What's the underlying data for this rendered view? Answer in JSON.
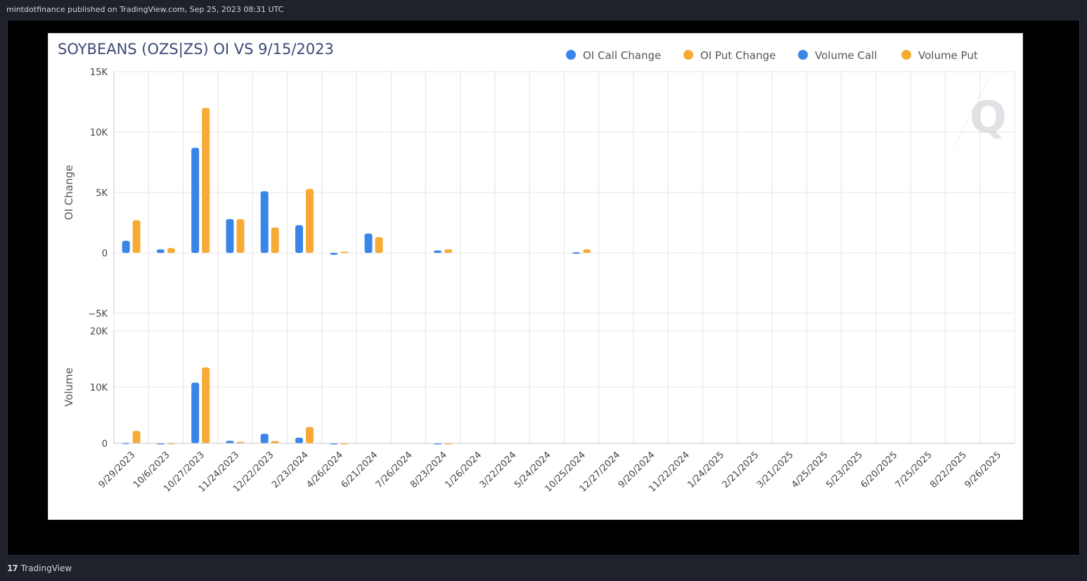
{
  "header": {
    "publish_line": "mintdotfinance published on TradingView.com, Sep 25, 2023 08:31 UTC"
  },
  "footer": {
    "brand_mark": "17",
    "brand": "TradingView"
  },
  "watermark": {
    "letter": "Q"
  },
  "colors": {
    "call": "#3a86e8",
    "put": "#f7ab36",
    "grid": "#e4e4e4",
    "axis": "#c8c8c8",
    "title": "#3b4a74"
  },
  "chart_data": {
    "type": "bar",
    "title": "SOYBEANS (OZS|ZS) OI VS 9/15/2023",
    "legend_position": "top-right",
    "grid": true,
    "categories": [
      "9/29/2023",
      "10/6/2023",
      "10/27/2023",
      "11/24/2023",
      "12/22/2023",
      "2/23/2024",
      "4/26/2024",
      "6/21/2024",
      "7/26/2024",
      "8/23/2024",
      "1/26/2024",
      "3/22/2024",
      "5/24/2024",
      "10/25/2024",
      "12/27/2024",
      "9/20/2024",
      "11/22/2024",
      "1/24/2025",
      "2/21/2025",
      "3/21/2025",
      "4/25/2025",
      "5/23/2025",
      "6/20/2025",
      "7/25/2025",
      "8/22/2025",
      "9/26/2025"
    ],
    "panels": [
      {
        "ylabel": "OI Change",
        "ylim": [
          -5000,
          15000
        ],
        "yticks": [
          15000,
          10000,
          5000,
          0,
          -5000
        ],
        "ytick_labels": [
          "15K",
          "10K",
          "5K",
          "0",
          "−5K"
        ],
        "series": [
          {
            "name": "OI Call Change",
            "color": "#3a86e8",
            "values": [
              1000,
              300,
              8700,
              2800,
              5100,
              2300,
              -150,
              1600,
              0,
              200,
              0,
              0,
              0,
              50,
              0,
              0,
              0,
              0,
              0,
              0,
              0,
              0,
              0,
              0,
              0,
              0
            ]
          },
          {
            "name": "OI Put Change",
            "color": "#f7ab36",
            "values": [
              2700,
              400,
              12000,
              2800,
              2100,
              5300,
              100,
              1300,
              0,
              300,
              0,
              0,
              0,
              300,
              0,
              0,
              0,
              0,
              0,
              0,
              0,
              0,
              0,
              0,
              0,
              0
            ]
          }
        ]
      },
      {
        "ylabel": "Volume",
        "ylim": [
          0,
          20000
        ],
        "yticks": [
          20000,
          10000,
          0
        ],
        "ytick_labels": [
          "20K",
          "10K",
          "0"
        ],
        "series": [
          {
            "name": "Volume Call",
            "color": "#3a86e8",
            "values": [
              100,
              50,
              10800,
              450,
              1700,
              1000,
              50,
              0,
              0,
              50,
              0,
              0,
              0,
              0,
              0,
              0,
              0,
              0,
              0,
              0,
              0,
              0,
              0,
              0,
              0,
              0
            ]
          },
          {
            "name": "Volume Put",
            "color": "#f7ab36",
            "values": [
              2200,
              80,
              13500,
              250,
              400,
              2900,
              50,
              0,
              0,
              50,
              0,
              0,
              0,
              0,
              0,
              0,
              0,
              0,
              0,
              0,
              0,
              0,
              0,
              0,
              0,
              0
            ]
          }
        ]
      }
    ]
  }
}
